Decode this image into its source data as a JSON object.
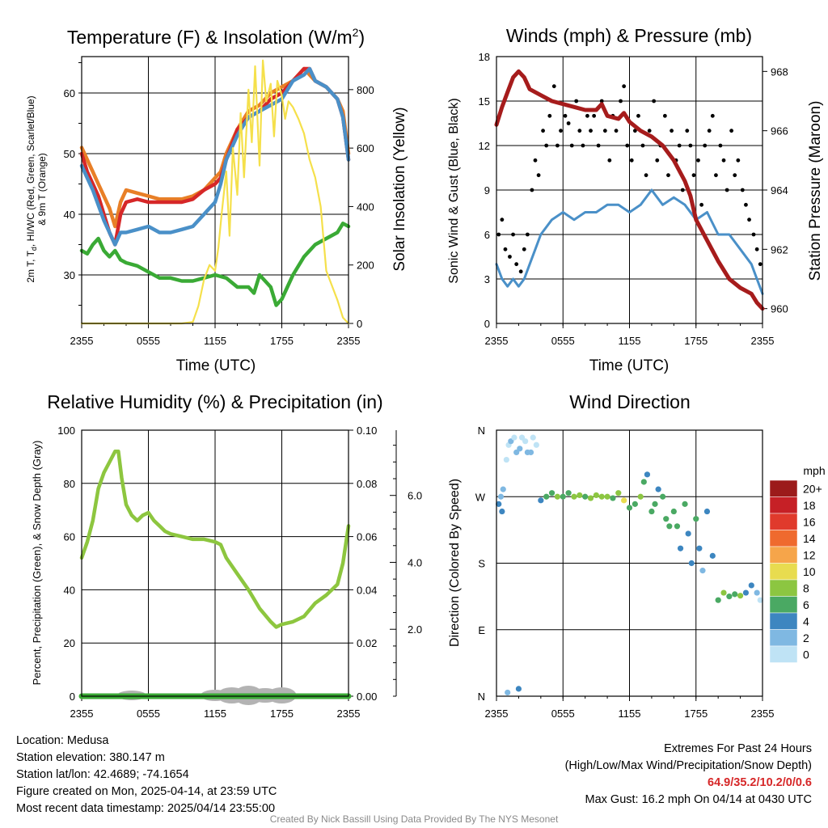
{
  "panels": {
    "temp": {
      "title": "Temperature (F) & Insolation (W/m",
      "title_sup": "2",
      "title_end": ")",
      "ylabel_left_1": "2m T, T",
      "ylabel_left_sub": "d",
      "ylabel_left_2": ", HI/WC (Red, Green, Scarlet/Blue)",
      "ylabel_left_3": "& 9m T (Orange)",
      "ylabel_right": "Solar Insolation (Yellow)",
      "xlabel": "Time (UTC)"
    },
    "wind": {
      "title": "Winds (mph) & Pressure (mb)",
      "ylabel_left": "Sonic Wind & Gust (Blue, Black)",
      "ylabel_right": "Station Pressure (Maroon)",
      "xlabel": "Time (UTC)"
    },
    "rh": {
      "title": "Relative Humidity (%) & Precipitation (in)",
      "ylabel_left": "Percent, Precipitation (Green), & Snow Depth (Gray)"
    },
    "dir": {
      "title": "Wind Direction",
      "ylabel_left": "Direction (Colored By Speed)",
      "colorbar_title": "mph"
    }
  },
  "chart_data": [
    {
      "id": "temp",
      "type": "line",
      "x_ticks": [
        "2355",
        "0555",
        "1155",
        "1755",
        "2355"
      ],
      "x_range_hours": [
        0,
        24
      ],
      "ylim_left": [
        22,
        66
      ],
      "ylim_right": [
        0,
        913
      ],
      "y_ticks_left": [
        30,
        40,
        50,
        60
      ],
      "y_ticks_right": [
        0,
        200,
        400,
        600,
        800
      ],
      "grid": true,
      "series": [
        {
          "color": "#e87f27",
          "axis": "left",
          "x": [
            0,
            0.5,
            1,
            1.5,
            2,
            2.5,
            3,
            3.5,
            4,
            5,
            6,
            7,
            8,
            9,
            10,
            11,
            12,
            12.5,
            13,
            14,
            15,
            16,
            17,
            18,
            19,
            20,
            20.5,
            21,
            22,
            23,
            23.5,
            24
          ],
          "y": [
            51,
            49,
            47,
            45,
            43,
            41,
            38,
            42,
            44,
            43.5,
            43,
            42.5,
            42.5,
            42.5,
            43,
            44,
            46,
            47,
            50,
            54,
            57,
            58,
            60,
            61,
            62,
            64,
            63,
            62,
            61,
            59,
            57,
            50
          ]
        },
        {
          "color": "#d62728",
          "axis": "left",
          "x": [
            0,
            0.5,
            1,
            1.5,
            2,
            2.5,
            3,
            3.5,
            4,
            5,
            6,
            7,
            8,
            9,
            10,
            11,
            12,
            12.5,
            13,
            14,
            15,
            16,
            17,
            18,
            19,
            20,
            20.5,
            21,
            22,
            23,
            23.5,
            24
          ],
          "y": [
            50,
            47,
            45,
            43,
            40,
            37,
            35,
            40,
            42,
            42.5,
            42,
            42,
            42,
            42,
            42.5,
            44,
            45,
            46,
            49,
            54,
            56,
            57,
            59,
            60,
            62,
            64,
            64,
            62,
            61,
            59,
            56,
            49
          ]
        },
        {
          "color": "#4a90c8",
          "axis": "left",
          "x": [
            0,
            1,
            2,
            3,
            3.5,
            4,
            5,
            6,
            7,
            8,
            9,
            10,
            11,
            11.5,
            12,
            12.5,
            13,
            14,
            15,
            16,
            17,
            18,
            19,
            20,
            20.5,
            21,
            22,
            23,
            23.5,
            24
          ],
          "y": [
            48,
            44,
            39,
            35,
            37,
            37,
            37.5,
            38,
            37,
            37,
            37.5,
            38,
            40,
            41,
            42,
            45,
            49,
            53,
            56,
            57,
            58,
            59,
            62,
            63,
            64,
            62,
            61,
            59,
            56,
            49
          ]
        },
        {
          "color": "#3aaa35",
          "axis": "left",
          "x": [
            0,
            0.5,
            1,
            1.5,
            2,
            2.5,
            3,
            3.5,
            4,
            5,
            6,
            7,
            8,
            9,
            10,
            11,
            12,
            13,
            14,
            15,
            15.5,
            16,
            17,
            17.5,
            18,
            19,
            20,
            21,
            22,
            23,
            23.5,
            24
          ],
          "y": [
            34,
            33.5,
            35,
            36,
            34,
            33,
            34,
            32.5,
            32,
            31.5,
            30.5,
            29.5,
            29.5,
            29,
            29,
            29.5,
            30,
            29.5,
            28,
            28,
            27,
            30,
            28,
            25,
            26,
            30,
            33,
            35,
            36,
            37,
            38.5,
            38
          ]
        },
        {
          "color": "#f5e04b",
          "axis": "left_scaled_right",
          "x": [
            0,
            9,
            10,
            10.5,
            11,
            11.5,
            12,
            12.3,
            12.6,
            13,
            13.3,
            13.6,
            14,
            14.3,
            14.6,
            15,
            15.3,
            15.6,
            16,
            16.3,
            16.6,
            17,
            17.3,
            17.6,
            18,
            18.3,
            18.6,
            19,
            19.5,
            20,
            20.5,
            21,
            21.5,
            22,
            23,
            23.5,
            24
          ],
          "y": [
            0,
            0,
            5,
            60,
            150,
            200,
            180,
            260,
            380,
            520,
            300,
            600,
            440,
            720,
            500,
            800,
            620,
            880,
            540,
            900,
            760,
            820,
            640,
            830,
            780,
            700,
            760,
            740,
            700,
            650,
            560,
            500,
            400,
            180,
            80,
            20,
            0
          ]
        }
      ]
    },
    {
      "id": "wind",
      "type": "line",
      "x_ticks": [
        "2355",
        "0555",
        "1155",
        "1755",
        "2355"
      ],
      "x_range_hours": [
        0,
        24
      ],
      "ylim_left": [
        0,
        18
      ],
      "ylim_right": [
        959.5,
        968.5
      ],
      "y_ticks_left": [
        0,
        3,
        6,
        9,
        12,
        15,
        18
      ],
      "y_ticks_right": [
        960,
        962,
        964,
        966,
        968
      ],
      "grid": true,
      "series": [
        {
          "color": "#4a90c8",
          "axis": "left",
          "x": [
            0,
            0.5,
            1,
            1.5,
            2,
            2.5,
            3,
            3.5,
            4,
            5,
            6,
            7,
            8,
            9,
            10,
            11,
            12,
            13,
            14,
            15,
            16,
            17,
            18,
            19,
            20,
            21,
            22,
            23,
            23.5,
            24
          ],
          "y": [
            4,
            3,
            2.5,
            3,
            2.5,
            3,
            4,
            5,
            6,
            7,
            7.5,
            7,
            7.5,
            7.5,
            8,
            8,
            7.5,
            8,
            9,
            8,
            8.5,
            8,
            7,
            7.5,
            6,
            6,
            5,
            4,
            3,
            2
          ]
        },
        {
          "color": "#a61c1c",
          "axis": "right",
          "x": [
            0,
            0.5,
            1,
            1.5,
            2,
            2.5,
            3,
            4,
            5,
            6,
            7,
            8,
            9,
            9.5,
            10,
            11,
            11.5,
            12,
            13,
            14,
            15,
            16,
            17,
            17.5,
            18,
            19,
            20,
            21,
            22,
            23,
            23.5,
            24
          ],
          "y": [
            966.2,
            966.8,
            967.3,
            967.8,
            968,
            967.8,
            967.4,
            967.2,
            967,
            966.9,
            966.8,
            966.7,
            966.7,
            966.9,
            966.5,
            966.4,
            966.6,
            966.3,
            966,
            965.8,
            965.5,
            965,
            964.3,
            963.8,
            963,
            962.3,
            961.6,
            961,
            960.7,
            960.5,
            960.2,
            960
          ]
        }
      ],
      "scatter": {
        "color": "#000000",
        "axis": "left",
        "x": [
          0.2,
          0.5,
          0.8,
          1.2,
          1.5,
          1.8,
          2.2,
          2.5,
          2.8,
          3.2,
          3.5,
          3.8,
          4.2,
          4.5,
          4.8,
          5.2,
          5.5,
          5.8,
          6.2,
          6.5,
          6.8,
          7.2,
          7.5,
          7.8,
          8.2,
          8.5,
          8.8,
          9.2,
          9.5,
          9.8,
          10.2,
          10.5,
          10.8,
          11.2,
          11.5,
          11.8,
          12.2,
          12.5,
          12.8,
          13.2,
          13.5,
          13.8,
          14.2,
          14.5,
          14.8,
          15.2,
          15.5,
          15.8,
          16.2,
          16.5,
          16.8,
          17.2,
          17.5,
          17.8,
          18.2,
          18.5,
          18.8,
          19.2,
          19.5,
          19.8,
          20.2,
          20.5,
          20.8,
          21.2,
          21.5,
          21.8,
          22.2,
          22.5,
          22.8,
          23.2,
          23.5,
          23.8
        ],
        "y": [
          6,
          7,
          5,
          4.5,
          6,
          4,
          3.5,
          5,
          6,
          9,
          11,
          10,
          13,
          12,
          14,
          16,
          12,
          13,
          14,
          13.5,
          12,
          15,
          13,
          12,
          14,
          13,
          14,
          12,
          15,
          13,
          11,
          14,
          13,
          15,
          16,
          12,
          11,
          13,
          14,
          12,
          10,
          13,
          15,
          11,
          12,
          14,
          10,
          13,
          11,
          12,
          9,
          13,
          12,
          10,
          11,
          8,
          12,
          13,
          14,
          10,
          12,
          11,
          9,
          13,
          10,
          11,
          9,
          8,
          7,
          6,
          5,
          4
        ]
      }
    },
    {
      "id": "rh",
      "type": "line",
      "x_ticks": [
        "2355",
        "0555",
        "1155",
        "1755",
        "2355"
      ],
      "x_range_hours": [
        0,
        24
      ],
      "ylim_left": [
        0,
        100
      ],
      "ylim_right": [
        0,
        0.1
      ],
      "y_ticks_left": [
        0,
        20,
        40,
        60,
        80,
        100
      ],
      "y_ticks_right": [
        0.0,
        0.02,
        0.04,
        0.06,
        0.08,
        0.1
      ],
      "y_ticks_snow": [
        2.0,
        4.0,
        6.0
      ],
      "grid": true,
      "series": [
        {
          "color": "#8dc63f",
          "axis": "left",
          "x": [
            0,
            0.5,
            1,
            1.5,
            2,
            2.5,
            3,
            3.3,
            3.6,
            4,
            4.5,
            5,
            5.5,
            6,
            6.5,
            7,
            7.5,
            8,
            9,
            10,
            11,
            12,
            12.5,
            13,
            14,
            15,
            16,
            17,
            17.5,
            18,
            19,
            20,
            21,
            22,
            23,
            23.5,
            24
          ],
          "y": [
            52,
            58,
            66,
            78,
            84,
            88,
            92,
            92,
            82,
            72,
            68,
            66,
            68,
            69,
            66,
            64,
            62,
            61,
            60,
            59,
            59,
            58,
            57,
            52,
            46,
            40,
            33,
            28,
            26,
            27,
            28,
            30,
            35,
            38,
            42,
            50,
            64
          ]
        },
        {
          "color": "#3aaa35",
          "axis": "left",
          "x": [
            0,
            24
          ],
          "y": [
            0,
            0
          ]
        }
      ]
    },
    {
      "id": "dir",
      "type": "scatter",
      "x_ticks": [
        "2355",
        "0555",
        "1155",
        "1755",
        "2355"
      ],
      "x_range_hours": [
        0,
        24
      ],
      "ylim": [
        0,
        360
      ],
      "y_ticks": [
        "N",
        "W",
        "S",
        "E",
        "N"
      ],
      "y_tick_values": [
        360,
        270,
        180,
        90,
        0
      ],
      "grid": true,
      "colorbar": {
        "labels": [
          "20+",
          "18",
          "16",
          "14",
          "12",
          "10",
          "8",
          "6",
          "4",
          "2",
          "0"
        ],
        "colors": [
          "#9c1b1b",
          "#c62026",
          "#e03a2c",
          "#ef6a2e",
          "#f6a54a",
          "#e8dc4f",
          "#8cc641",
          "#4aa963",
          "#3d86c0",
          "#7fb8e2",
          "#bfe3f5"
        ]
      },
      "points": {
        "x": [
          0.2,
          0.4,
          0.6,
          0.9,
          1.1,
          1.3,
          1.6,
          1.8,
          2.1,
          2.3,
          2.6,
          2.8,
          3.1,
          3.3,
          3.6,
          4.0,
          4.5,
          5.0,
          5.5,
          6.0,
          6.5,
          7.0,
          7.5,
          8.0,
          8.5,
          9.0,
          9.5,
          10.0,
          10.5,
          11.0,
          11.5,
          12.0,
          12.5,
          13.0,
          13.3,
          13.6,
          14.0,
          14.3,
          14.6,
          15.0,
          15.3,
          15.6,
          16.0,
          16.3,
          16.6,
          17.0,
          17.3,
          17.6,
          18.0,
          18.3,
          18.6,
          19.0,
          19.5,
          20.0,
          20.5,
          21.0,
          21.5,
          22.0,
          22.5,
          23.0,
          23.5,
          23.8,
          1.0,
          2.0,
          0.5
        ],
        "y": [
          260,
          270,
          280,
          320,
          340,
          345,
          350,
          330,
          335,
          350,
          345,
          330,
          330,
          350,
          340,
          265,
          270,
          275,
          270,
          270,
          275,
          270,
          272,
          270,
          268,
          272,
          270,
          270,
          268,
          275,
          265,
          255,
          260,
          270,
          290,
          300,
          250,
          260,
          280,
          270,
          240,
          230,
          250,
          230,
          200,
          260,
          220,
          180,
          240,
          200,
          170,
          250,
          190,
          130,
          140,
          135,
          138,
          136,
          140,
          150,
          140,
          130,
          5,
          10,
          250
        ],
        "speed": [
          4,
          3,
          2,
          1,
          1,
          2,
          1,
          2,
          2,
          1,
          1,
          2,
          2,
          1,
          1,
          4,
          6,
          7,
          8,
          7,
          6,
          8,
          9,
          7,
          8,
          8,
          8,
          8,
          7,
          8,
          10,
          7,
          7,
          9,
          6,
          4,
          7,
          6,
          5,
          6,
          7,
          6,
          7,
          6,
          5,
          6,
          5,
          4,
          6,
          4,
          3,
          5,
          4,
          7,
          8,
          6,
          7,
          8,
          5,
          4,
          2,
          1,
          3,
          4,
          4
        ]
      }
    }
  ],
  "info": {
    "location": "Location: Medusa",
    "elevation": "Station elevation: 380.147 m",
    "latlon": "Station lat/lon: 42.4689; -74.1654",
    "created": "Figure created on Mon, 2025-04-14, at 23:59 UTC",
    "recent": "Most recent data timestamp: 2025/04/14 23:55:00"
  },
  "extremes": {
    "title": "Extremes For Past 24 Hours",
    "subtitle": "(High/Low/Max Wind/Precipitation/Snow Depth)",
    "values": "64.9/35.2/10.2/0/0.6",
    "gust": "Max Gust: 16.2 mph On 04/14 at 0430 UTC"
  },
  "credit": "Created By Nick Bassill Using Data Provided By The NYS Mesonet"
}
